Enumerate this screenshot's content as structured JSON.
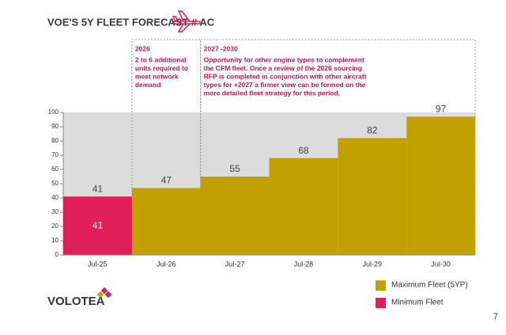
{
  "chart_data": {
    "type": "bar",
    "title": "VOE'S 5Y FLEET FORECAST # AC",
    "categories": [
      "Jul-25",
      "Jul-26",
      "Jul-27",
      "Jul-28",
      "Jul-29",
      "Jul-30"
    ],
    "series": [
      {
        "name": "Maximum Fleet (5YP)",
        "color": "#c1a000",
        "values": [
          41,
          47,
          55,
          68,
          82,
          97
        ]
      },
      {
        "name": "Minimum Fleet",
        "color": "#e01f5a",
        "values": [
          41,
          null,
          null,
          null,
          null,
          null
        ]
      }
    ],
    "ylim": [
      0,
      100
    ],
    "yticks": [
      0,
      10,
      20,
      30,
      40,
      50,
      60,
      70,
      80,
      90,
      100
    ],
    "annotations": [
      {
        "title": "2026",
        "lines": [
          "2 to 6 additional",
          "units required to",
          "meet network",
          "demand"
        ]
      },
      {
        "title": "2027 -2030",
        "lines": [
          "Opportunity for other engine types to complement",
          "the CFM fleet. Once a review of the 2026 sourcing",
          "RFP is completed in conjunction with other aircraft",
          "types for +2027 a firmer view can be formed on the",
          "more detailed fleet strategy for this period."
        ]
      }
    ]
  },
  "footer": {
    "logo": "VOLOTEA",
    "page_number": "7"
  }
}
